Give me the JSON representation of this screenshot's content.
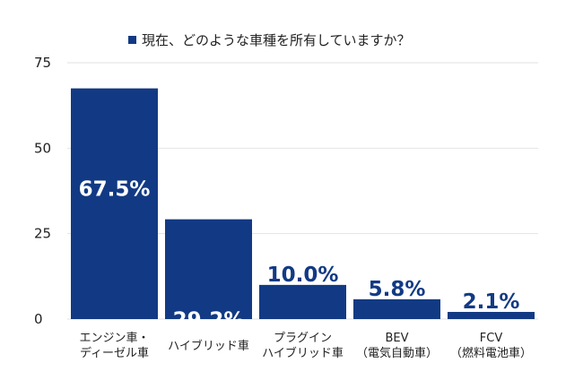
{
  "colors": {
    "bar": "#123a84",
    "grid": "#e2e2e2",
    "text": "#222222",
    "inner_label": "#ffffff"
  },
  "chart_data": {
    "type": "bar",
    "title": "",
    "legend": {
      "position": "top-center",
      "marker_color": "#123a84"
    },
    "categories": [
      [
        "エンジン車・",
        "ディーゼル車"
      ],
      [
        "ハイブリッド車"
      ],
      [
        "プラグイン",
        "ハイブリッド車"
      ],
      [
        "BEV",
        "（電気自動車）"
      ],
      [
        "FCV",
        "（燃料電池車）"
      ]
    ],
    "series": [
      {
        "name": "現在、どのような車種を所有していますか？",
        "values": [
          67.5,
          29.2,
          10.0,
          5.8,
          2.1
        ],
        "labels": [
          "67.5%",
          "29.2%",
          "10.0%",
          "5.8%",
          "2.1%"
        ]
      }
    ],
    "ylim": [
      0,
      75
    ],
    "yticks": [
      "0",
      "25",
      "50",
      "75"
    ],
    "grid": true,
    "xlabel": "",
    "ylabel": ""
  }
}
